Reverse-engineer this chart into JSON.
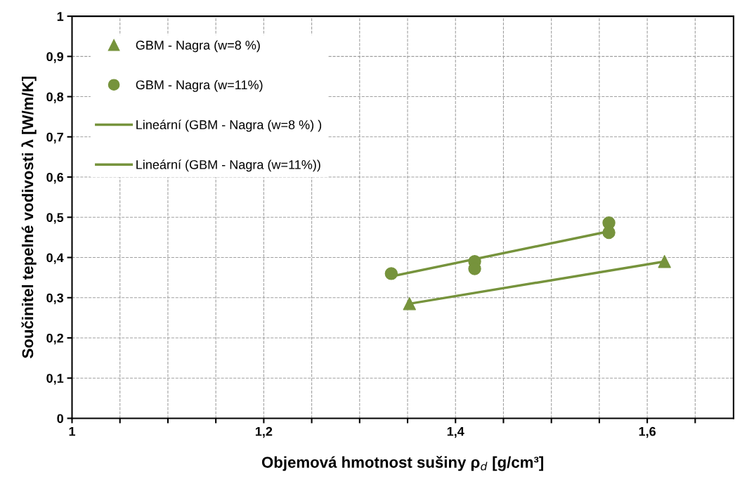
{
  "chart_data": {
    "type": "scatter",
    "xlabel": "Objemová hmotnost sušiny ρ$_{d}$ [g/cm³]",
    "ylabel": "Součinitel tepelné vodivosti λ [W/m/K]",
    "xlim": [
      1,
      1.69
    ],
    "ylim": [
      0,
      1
    ],
    "xticks": [
      1,
      {
        "value": 1.05,
        "label": null
      },
      {
        "value": 1.1,
        "label": null
      },
      {
        "value": 1.15,
        "label": null
      },
      {
        "value": 1.2,
        "label": "1,2"
      },
      {
        "value": 1.25,
        "label": null
      },
      {
        "value": 1.3,
        "label": null
      },
      {
        "value": 1.35,
        "label": null
      },
      {
        "value": 1.4,
        "label": "1,4"
      },
      {
        "value": 1.45,
        "label": null
      },
      {
        "value": 1.5,
        "label": null
      },
      {
        "value": 1.55,
        "label": null
      },
      {
        "value": 1.6,
        "label": "1,6"
      },
      {
        "value": 1.65,
        "label": null
      }
    ],
    "yticks": [
      0,
      {
        "value": 0.1,
        "label": "0,1"
      },
      {
        "value": 0.2,
        "label": "0,2"
      },
      {
        "value": 0.3,
        "label": "0,3"
      },
      {
        "value": 0.4,
        "label": "0,4"
      },
      {
        "value": 0.5,
        "label": "0,5"
      },
      {
        "value": 0.6,
        "label": "0,6"
      },
      {
        "value": 0.7,
        "label": "0,7"
      },
      {
        "value": 0.8,
        "label": "0,8"
      },
      {
        "value": 0.9,
        "label": "0,9"
      },
      1
    ],
    "grid": true,
    "legend": "top left",
    "series": [
      {
        "name": "GBM - Nagra (w=8 %)",
        "marker": "triangle",
        "color": "#76933c",
        "x": [
          1.352,
          1.618
        ],
        "values": [
          0.285,
          0.39
        ]
      },
      {
        "name": "GBM - Nagra (w=11%)",
        "marker": "circle",
        "color": "#76933c",
        "x": [
          1.333,
          1.42,
          1.42,
          1.56,
          1.56
        ],
        "values": [
          0.36,
          0.39,
          0.372,
          0.486,
          0.462
        ]
      },
      {
        "name": "Lineární (GBM - Nagra (w=8 %) )",
        "type": "line",
        "marker": "none",
        "color": "#76933c",
        "x": [
          1.352,
          1.618
        ],
        "values": [
          0.285,
          0.39
        ]
      },
      {
        "name": "Lineární (GBM - Nagra (w=11%))",
        "type": "line",
        "marker": "none",
        "color": "#76933c",
        "x": [
          1.333,
          1.56
        ],
        "values": [
          0.353,
          0.465
        ]
      }
    ]
  }
}
